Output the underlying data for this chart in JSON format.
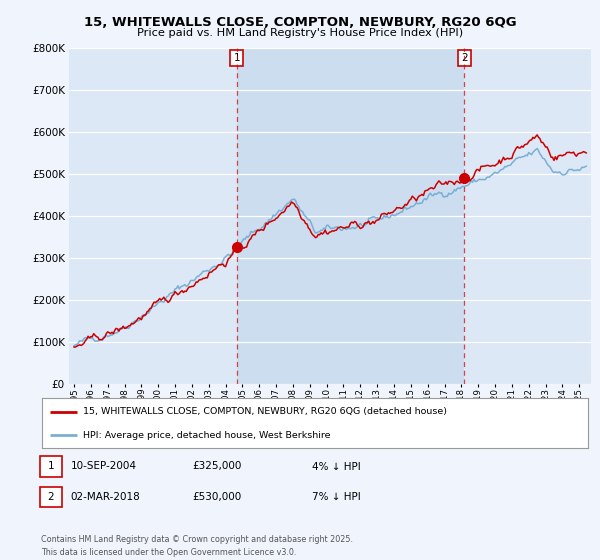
{
  "title_line1": "15, WHITEWALLS CLOSE, COMPTON, NEWBURY, RG20 6QG",
  "title_line2": "Price paid vs. HM Land Registry's House Price Index (HPI)",
  "background_color": "#f0f4fc",
  "plot_bg_color": "#dce8f5",
  "highlight_color": "#ccddf0",
  "grid_color": "#ffffff",
  "red_line_color": "#cc0000",
  "blue_line_color": "#7aafd4",
  "legend_entry1": "15, WHITEWALLS CLOSE, COMPTON, NEWBURY, RG20 6QG (detached house)",
  "legend_entry2": "HPI: Average price, detached house, West Berkshire",
  "table_row1": [
    "1",
    "10-SEP-2004",
    "£325,000",
    "4% ↓ HPI"
  ],
  "table_row2": [
    "2",
    "02-MAR-2018",
    "£530,000",
    "7% ↓ HPI"
  ],
  "footer": "Contains HM Land Registry data © Crown copyright and database right 2025.\nThis data is licensed under the Open Government Licence v3.0.",
  "ylim_max": 800000,
  "ylim_min": 0,
  "sale1_year_month": [
    2004,
    9
  ],
  "sale1_price": 325000,
  "sale2_year_month": [
    2018,
    3
  ],
  "sale2_price": 530000,
  "start_year": 1995,
  "n_months": 366
}
